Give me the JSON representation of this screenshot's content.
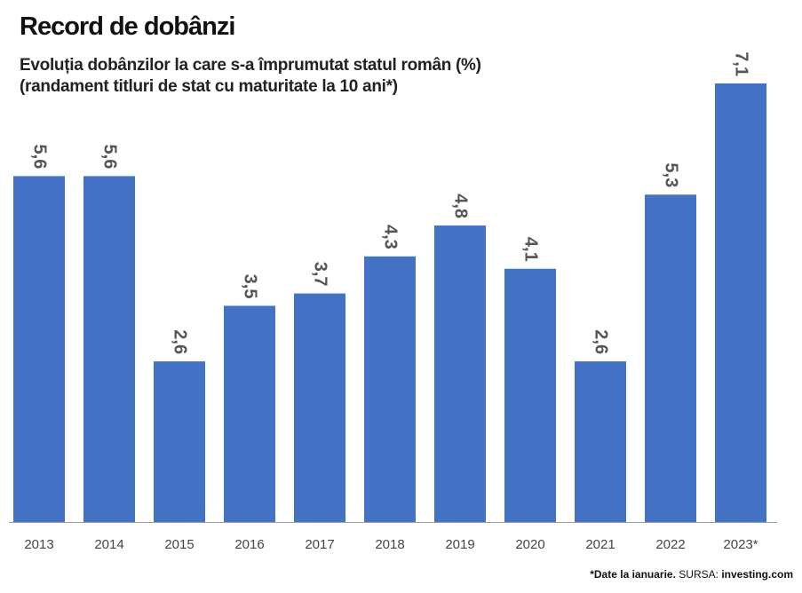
{
  "header": {
    "title": "Record de dobânzi",
    "subtitle_line1": "Evoluția dobânzilor la care s-a împrumutat statul român (%)",
    "subtitle_line2": "(randament titluri de stat cu maturitate la 10 ani*)"
  },
  "footer": {
    "note": "*Date la ianuarie.",
    "source_label": "SURSA:",
    "source": "investing.com"
  },
  "colors": {
    "bar": "#4472c4",
    "label": "#555555",
    "axis": "#999999",
    "tick": "#444444"
  },
  "chart_data": {
    "type": "bar",
    "categories": [
      "2013",
      "2014",
      "2015",
      "2016",
      "2017",
      "2018",
      "2019",
      "2020",
      "2021",
      "2022",
      "2023*"
    ],
    "values": [
      5.6,
      5.6,
      2.6,
      3.5,
      3.7,
      4.3,
      4.8,
      4.1,
      2.6,
      5.3,
      7.1
    ],
    "value_labels": [
      "5,6",
      "5,6",
      "2,6",
      "3,5",
      "3,7",
      "4,3",
      "4,8",
      "4,1",
      "2,6",
      "5,3",
      "7,1"
    ],
    "title": "Record de dobânzi",
    "xlabel": "",
    "ylabel": "",
    "ylim": [
      0,
      7.1
    ],
    "grid": false,
    "legend": "none",
    "data_label_orientation": "rotated-vertical"
  }
}
